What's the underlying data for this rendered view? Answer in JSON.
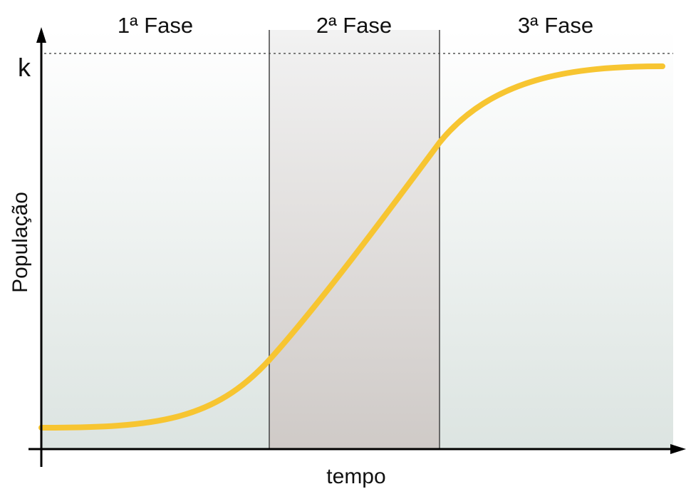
{
  "phases": [
    "1ª Fase",
    "2ª Fase",
    "3ª Fase"
  ],
  "y_axis_label": "População",
  "x_axis_label": "tempo",
  "carrying_capacity_label": "k"
}
